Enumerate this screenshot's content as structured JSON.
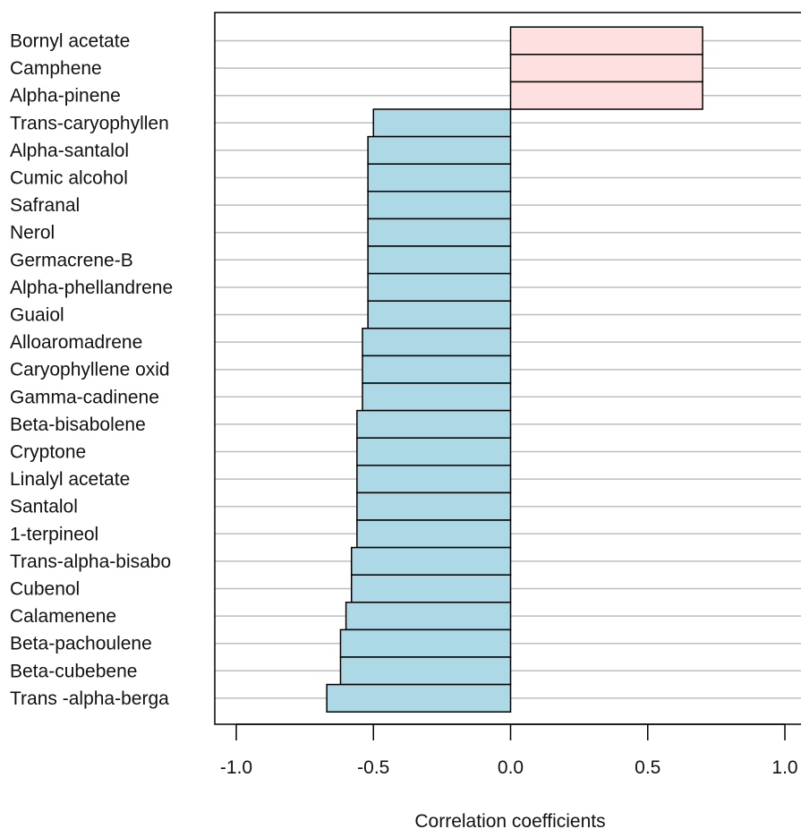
{
  "chart_data": {
    "type": "bar",
    "orientation": "horizontal",
    "title": "",
    "xlabel": "Correlation coefficients",
    "ylabel": "",
    "xlim": [
      -1.0,
      1.0
    ],
    "xticks": [
      -1.0,
      -0.5,
      0.0,
      0.5,
      1.0
    ],
    "xtick_labels": [
      "-1.0",
      "-0.5",
      "0.0",
      "0.5",
      "1.0"
    ],
    "grid": "horizontal lines",
    "colors": {
      "positive": "#ffe0e0",
      "negative": "#add8e6",
      "grid": "#bebebe",
      "outline": "#000000"
    },
    "categories": [
      "Bornyl acetate",
      "Camphene",
      "Alpha-pinene",
      "Trans-caryophyllen",
      "Alpha-santalol",
      "Cumic alcohol",
      "Safranal",
      "Nerol",
      "Germacrene-B",
      "Alpha-phellandrene",
      "Guaiol",
      "Alloaromadrene",
      "Caryophyllene oxid",
      "Gamma-cadinene",
      "Beta-bisabolene",
      "Cryptone",
      "Linalyl acetate",
      "Santalol",
      "1-terpineol",
      "Trans-alpha-bisabo",
      "Cubenol",
      "Calamenene",
      "Beta-pachoulene",
      "Beta-cubebene",
      "Trans -alpha-berga"
    ],
    "values": [
      0.7,
      0.7,
      0.7,
      -0.5,
      -0.52,
      -0.52,
      -0.52,
      -0.52,
      -0.52,
      -0.52,
      -0.52,
      -0.54,
      -0.54,
      -0.54,
      -0.56,
      -0.56,
      -0.56,
      -0.56,
      -0.56,
      -0.58,
      -0.58,
      -0.6,
      -0.62,
      -0.62,
      -0.67
    ]
  }
}
